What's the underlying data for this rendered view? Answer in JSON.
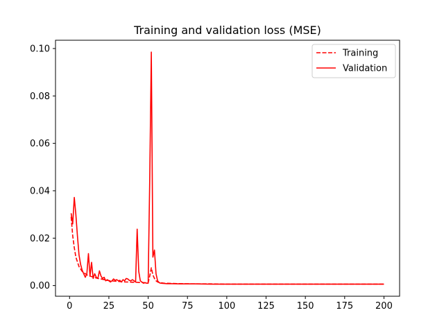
{
  "chart_data": {
    "type": "line",
    "title": "Training and validation loss (MSE)",
    "xlabel": "",
    "ylabel": "",
    "xlim": [
      -8.95,
      209.95
    ],
    "ylim": [
      -0.0045,
      0.1035
    ],
    "xticks": [
      0,
      25,
      50,
      75,
      100,
      125,
      150,
      175,
      200
    ],
    "xtick_labels": [
      "0",
      "25",
      "50",
      "75",
      "100",
      "125",
      "150",
      "175",
      "200"
    ],
    "yticks": [
      0.0,
      0.02,
      0.04,
      0.06,
      0.08,
      0.1
    ],
    "ytick_labels": [
      "0.00",
      "0.02",
      "0.04",
      "0.06",
      "0.08",
      "0.10"
    ],
    "grid": false,
    "legend_position": "top-right",
    "series": [
      {
        "name": "Training",
        "color": "#ff0000",
        "style": "dashed",
        "x": [
          1,
          2,
          3,
          4,
          5,
          6,
          7,
          8,
          9,
          10,
          11,
          12,
          13,
          14,
          15,
          16,
          17,
          18,
          19,
          20,
          22,
          24,
          26,
          28,
          30,
          32,
          34,
          36,
          38,
          40,
          42,
          44,
          46,
          48,
          50,
          51,
          52,
          53,
          54,
          55,
          56,
          58,
          60,
          65,
          70,
          80,
          90,
          100,
          120,
          140,
          160,
          180,
          200
        ],
        "y": [
          0.029,
          0.021,
          0.016,
          0.012,
          0.01,
          0.008,
          0.007,
          0.006,
          0.0055,
          0.005,
          0.0045,
          0.0042,
          0.004,
          0.0038,
          0.0036,
          0.0034,
          0.0032,
          0.003,
          0.0029,
          0.0028,
          0.0025,
          0.0022,
          0.002,
          0.0019,
          0.0018,
          0.0017,
          0.0016,
          0.0015,
          0.0015,
          0.0014,
          0.0014,
          0.0013,
          0.0013,
          0.0012,
          0.0012,
          0.004,
          0.0075,
          0.0045,
          0.003,
          0.002,
          0.0015,
          0.0012,
          0.001,
          0.0009,
          0.0008,
          0.0007,
          0.0007,
          0.0006,
          0.0006,
          0.0006,
          0.0006,
          0.0006,
          0.0006
        ]
      },
      {
        "name": "Validation",
        "color": "#ff0000",
        "style": "solid",
        "x": [
          1,
          2,
          3,
          4,
          5,
          6,
          7,
          8,
          9,
          10,
          11,
          12,
          13,
          14,
          15,
          16,
          17,
          18,
          19,
          20,
          21,
          22,
          23,
          24,
          25,
          26,
          27,
          28,
          29,
          30,
          31,
          32,
          33,
          34,
          35,
          36,
          37,
          38,
          39,
          40,
          41,
          42,
          43,
          44,
          45,
          46,
          47,
          48,
          49,
          50,
          51,
          52,
          53,
          54,
          55,
          56,
          57,
          58,
          60,
          62,
          65,
          70,
          80,
          90,
          100,
          110,
          120,
          130,
          140,
          150,
          160,
          170,
          180,
          190,
          200
        ],
        "y": [
          0.0305,
          0.026,
          0.0372,
          0.03,
          0.021,
          0.013,
          0.009,
          0.0065,
          0.005,
          0.0035,
          0.005,
          0.0135,
          0.004,
          0.0098,
          0.003,
          0.005,
          0.0035,
          0.003,
          0.0062,
          0.004,
          0.003,
          0.0035,
          0.002,
          0.0025,
          0.002,
          0.0015,
          0.002,
          0.0028,
          0.0022,
          0.0025,
          0.002,
          0.0022,
          0.0015,
          0.0025,
          0.002,
          0.003,
          0.0028,
          0.0022,
          0.002,
          0.0025,
          0.002,
          0.0015,
          0.0238,
          0.006,
          0.002,
          0.0015,
          0.001,
          0.0012,
          0.001,
          0.001,
          0.045,
          0.0985,
          0.012,
          0.015,
          0.005,
          0.002,
          0.0012,
          0.001,
          0.0009,
          0.0008,
          0.0008,
          0.0007,
          0.0007,
          0.0006,
          0.0006,
          0.0006,
          0.0006,
          0.0006,
          0.0006,
          0.0006,
          0.0006,
          0.0006,
          0.0006,
          0.0006,
          0.0006
        ]
      }
    ]
  }
}
